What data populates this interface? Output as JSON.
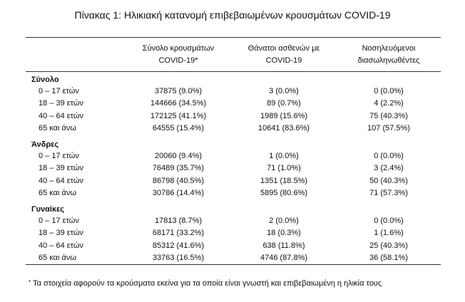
{
  "title": "Πίνακας 1: Ηλικιακή κατανομή επιβεβαιωμένων κρουσμάτων COVID-19",
  "headers": {
    "col0": "",
    "col1_line1": "Σύνολο κρουσμάτων",
    "col1_line2": "COVID-19*",
    "col2_line1": "Θάνατοι ασθενών με",
    "col2_line2": "COVID-19",
    "col3_line1": "Νοσηλευόμενοι",
    "col3_line2": "διασωληνωθέντες"
  },
  "groups": [
    {
      "name": "Σύνολο",
      "rows": [
        {
          "age": "0 – 17 ετών",
          "cases": "37875 (9.0%)",
          "deaths": "3 (0.0%)",
          "intubated": "0 (0.0%)"
        },
        {
          "age": "18 – 39 ετών",
          "cases": "144666 (34.5%)",
          "deaths": "89 (0.7%)",
          "intubated": "4 (2.2%)"
        },
        {
          "age": "40 – 64 ετών",
          "cases": "172125 (41.1%)",
          "deaths": "1989 (15.6%)",
          "intubated": "75 (40.3%)"
        },
        {
          "age": "65 και άνω",
          "cases": "64555 (15.4%)",
          "deaths": "10641 (83.6%)",
          "intubated": "107 (57.5%)"
        }
      ]
    },
    {
      "name": "Άνδρες",
      "rows": [
        {
          "age": "0 – 17 ετών",
          "cases": "20060 (9.4%)",
          "deaths": "1 (0.0%)",
          "intubated": "0 (0.0%)"
        },
        {
          "age": "18 – 39 ετών",
          "cases": "76489 (35.7%)",
          "deaths": "71 (1.0%)",
          "intubated": "3 (2.4%)"
        },
        {
          "age": "40 – 64 ετών",
          "cases": "86798 (40.5%)",
          "deaths": "1351 (18.5%)",
          "intubated": "50 (40.3%)"
        },
        {
          "age": "65 και άνω",
          "cases": "30786 (14.4%)",
          "deaths": "5895 (80.6%)",
          "intubated": "71 (57.3%)"
        }
      ]
    },
    {
      "name": "Γυναίκες",
      "rows": [
        {
          "age": "0 – 17 ετών",
          "cases": "17813 (8.7%)",
          "deaths": "2 (0.0%)",
          "intubated": "0 (0.0%)"
        },
        {
          "age": "18 – 39 ετών",
          "cases": "68171 (33.2%)",
          "deaths": "18 (0.3%)",
          "intubated": "1 (1.6%)"
        },
        {
          "age": "40 – 64 ετών",
          "cases": "85312 (41.6%)",
          "deaths": "638 (11.8%)",
          "intubated": "25 (40.3%)"
        },
        {
          "age": "65 και άνω",
          "cases": "33763 (16.5%)",
          "deaths": "4746 (87.8%)",
          "intubated": "36 (58.1%)"
        }
      ]
    }
  ],
  "footnote": {
    "marker": "*",
    "text": "Τα στοιχεία αφορούν τα κρούσματα εκείνα για τα οποία είναι γνωστή και επιβεβαιωμένη η ηλικία τους"
  }
}
